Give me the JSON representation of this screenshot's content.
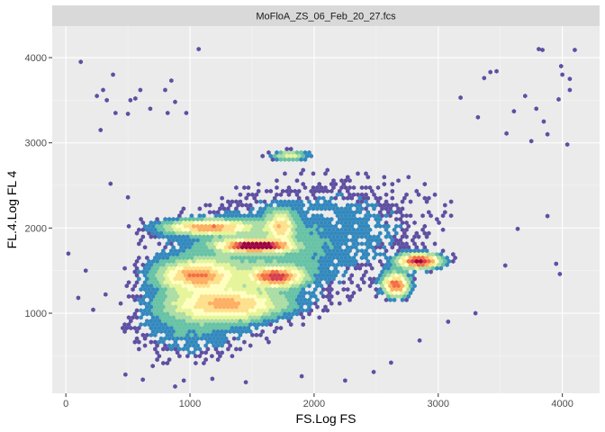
{
  "chart_data": {
    "type": "heatmap",
    "title": "",
    "facet_label": "MoFloA_ZS_06_Feb_20_27.fcs",
    "xlabel": "FS.Log FS",
    "ylabel": "FL.4.Log FL 4",
    "xlim": [
      -110,
      4300
    ],
    "ylim": [
      60,
      4370
    ],
    "x_ticks": [
      0,
      1000,
      2000,
      3000,
      4000
    ],
    "x_tick_labels": [
      "0",
      "1000",
      "2000",
      "3000",
      "4000"
    ],
    "y_ticks": [
      1000,
      2000,
      3000,
      4000
    ],
    "y_tick_labels": [
      "1000",
      "2000",
      "3000",
      "4000"
    ],
    "grid": true,
    "palette": [
      "#5E4FA2",
      "#3288BD",
      "#66C2A5",
      "#ABDDA4",
      "#E6F598",
      "#FFFFBF",
      "#FEE08B",
      "#FDAE61",
      "#F46D43",
      "#D53E4F",
      "#9E0142"
    ],
    "panel_background": "#EBEBEB",
    "strip_background": "#D9D9D9",
    "clusters": [
      {
        "x": 1520,
        "y": 1790,
        "sx": 170,
        "sy": 45,
        "weight": 1.0
      },
      {
        "x": 1700,
        "y": 1430,
        "sx": 130,
        "sy": 70,
        "weight": 0.72
      },
      {
        "x": 1150,
        "y": 2010,
        "sx": 230,
        "sy": 55,
        "weight": 0.58
      },
      {
        "x": 1050,
        "y": 1440,
        "sx": 200,
        "sy": 110,
        "weight": 0.55
      },
      {
        "x": 1300,
        "y": 1100,
        "sx": 300,
        "sy": 120,
        "weight": 0.5
      },
      {
        "x": 2850,
        "y": 1610,
        "sx": 110,
        "sy": 55,
        "weight": 0.9
      },
      {
        "x": 2660,
        "y": 1330,
        "sx": 70,
        "sy": 90,
        "weight": 0.75
      },
      {
        "x": 1730,
        "y": 2020,
        "sx": 70,
        "sy": 120,
        "weight": 0.42
      },
      {
        "x": 1800,
        "y": 2850,
        "sx": 100,
        "sy": 40,
        "weight": 0.35
      },
      {
        "x": 1400,
        "y": 1600,
        "sx": 550,
        "sy": 420,
        "weight": 0.18
      },
      {
        "x": 2300,
        "y": 2050,
        "sx": 650,
        "sy": 480,
        "weight": 0.1
      },
      {
        "x": 1000,
        "y": 800,
        "sx": 350,
        "sy": 280,
        "weight": 0.14
      }
    ],
    "outliers": [
      [
        120,
        3950
      ],
      [
        250,
        3550
      ],
      [
        300,
        3620
      ],
      [
        330,
        3500
      ],
      [
        380,
        3800
      ],
      [
        520,
        3500
      ],
      [
        560,
        3520
      ],
      [
        600,
        3620
      ],
      [
        680,
        3400
      ],
      [
        800,
        3620
      ],
      [
        850,
        3730
      ],
      [
        880,
        3480
      ],
      [
        820,
        3350
      ],
      [
        970,
        3350
      ],
      [
        1070,
        4100
      ],
      [
        280,
        3150
      ],
      [
        400,
        3350
      ],
      [
        500,
        3340
      ],
      [
        3370,
        3760
      ],
      [
        3420,
        3830
      ],
      [
        3470,
        3840
      ],
      [
        3810,
        4100
      ],
      [
        3840,
        4090
      ],
      [
        3990,
        3900
      ],
      [
        4000,
        3800
      ],
      [
        4060,
        3620
      ],
      [
        4100,
        4090
      ],
      [
        4060,
        3750
      ],
      [
        3700,
        3550
      ],
      [
        3790,
        3400
      ],
      [
        3610,
        3370
      ],
      [
        3970,
        3510
      ],
      [
        3550,
        3110
      ],
      [
        4040,
        2980
      ],
      [
        3850,
        3250
      ],
      [
        3880,
        3100
      ],
      [
        3750,
        3020
      ],
      [
        3180,
        3530
      ],
      [
        3320,
        3300
      ],
      [
        360,
        2520
      ],
      [
        500,
        2360
      ],
      [
        160,
        1500
      ],
      [
        20,
        1700
      ],
      [
        100,
        1180
      ],
      [
        220,
        1040
      ],
      [
        320,
        1220
      ],
      [
        480,
        280
      ],
      [
        620,
        220
      ],
      [
        700,
        380
      ],
      [
        880,
        140
      ],
      [
        950,
        210
      ],
      [
        1180,
        230
      ],
      [
        1450,
        190
      ],
      [
        1900,
        260
      ],
      [
        2250,
        210
      ],
      [
        2480,
        310
      ],
      [
        2620,
        420
      ],
      [
        2850,
        680
      ],
      [
        3080,
        900
      ],
      [
        3300,
        1000
      ],
      [
        3950,
        1580
      ],
      [
        3980,
        1460
      ],
      [
        3540,
        1560
      ],
      [
        3640,
        1990
      ],
      [
        3880,
        2140
      ]
    ]
  }
}
